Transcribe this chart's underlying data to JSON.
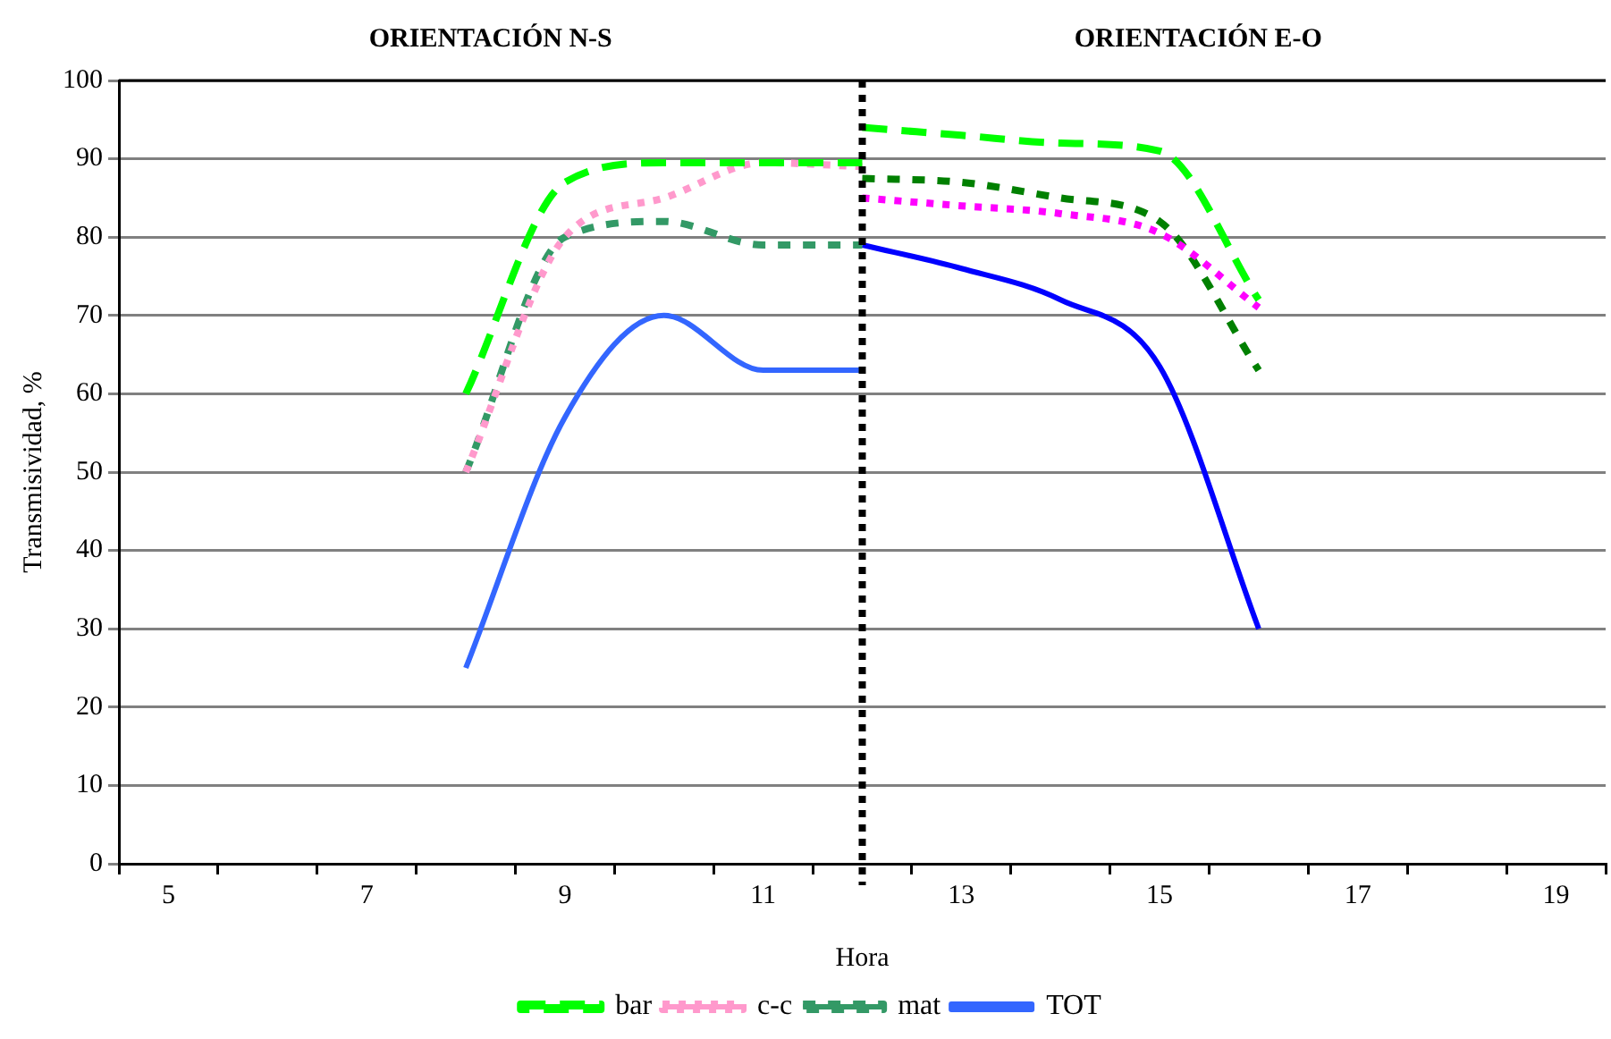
{
  "chart_data": {
    "type": "line",
    "xlabel": "Hora",
    "ylabel": "Transmisividad, %",
    "annotations": [
      "ORIENTACIÓN N-S",
      "ORIENTACIÓN E-O"
    ],
    "xlim": [
      4.5,
      19.5
    ],
    "xticks": [
      {
        "value": 4.5,
        "label": null
      },
      5,
      {
        "value": 5.5,
        "label": null
      },
      {
        "value": 6.5,
        "label": null
      },
      7,
      {
        "value": 7.5,
        "label": null
      },
      {
        "value": 8.5,
        "label": null
      },
      9,
      {
        "value": 9.5,
        "label": null
      },
      {
        "value": 10.5,
        "label": null
      },
      11,
      {
        "value": 11.5,
        "label": null
      },
      {
        "value": 12.5,
        "label": null
      },
      13,
      {
        "value": 13.5,
        "label": null
      },
      {
        "value": 14.5,
        "label": null
      },
      15,
      {
        "value": 15.5,
        "label": null
      },
      {
        "value": 16.5,
        "label": null
      },
      17,
      {
        "value": 17.5,
        "label": null
      },
      {
        "value": 18.5,
        "label": null
      },
      19,
      {
        "value": 19.5,
        "label": null
      }
    ],
    "ylim": [
      0,
      100
    ],
    "yticks": [
      0,
      10,
      20,
      30,
      40,
      50,
      60,
      70,
      80,
      90,
      100
    ],
    "grid": "y",
    "legend": "bottom",
    "marker": "none",
    "ref_lines": [
      {
        "axis": "x",
        "value": 12,
        "color": "#000000",
        "line_style": "dotted"
      }
    ],
    "series": [
      {
        "name": "bar",
        "color": "#00ff00",
        "line_style": "dashed",
        "x": [
          8,
          9,
          10,
          11,
          12
        ],
        "values": [
          60,
          87,
          89.5,
          89.5,
          89.5
        ]
      },
      {
        "name": "c-c",
        "color": "#ff99cc",
        "line_style": "dotted",
        "x": [
          8,
          9,
          10,
          11,
          12
        ],
        "values": [
          50,
          80,
          85,
          89.5,
          89
        ]
      },
      {
        "name": "mat",
        "color": "#339966",
        "line_style": "dashed",
        "x": [
          8,
          9,
          10,
          11,
          12
        ],
        "values": [
          50,
          80,
          82,
          79,
          79
        ]
      },
      {
        "name": "TOT",
        "color": "#3366ff",
        "line_style": "solid",
        "x": [
          8,
          9,
          10,
          11,
          12
        ],
        "values": [
          25,
          57,
          70,
          63,
          63
        ]
      },
      {
        "color": "#00ff00",
        "line_style": "dashed",
        "x": [
          12,
          13,
          14,
          15,
          16
        ],
        "values": [
          94,
          93,
          92,
          91,
          72
        ]
      },
      {
        "color": "#ff00ff",
        "line_style": "dotted",
        "x": [
          12,
          13,
          14,
          15,
          16
        ],
        "values": [
          85,
          84,
          83,
          80.5,
          71
        ]
      },
      {
        "color": "#008000",
        "line_style": "dashed",
        "x": [
          12,
          13,
          14,
          15,
          16
        ],
        "values": [
          87.5,
          87,
          85,
          82,
          63
        ]
      },
      {
        "color": "#0000ff",
        "line_style": "solid",
        "x": [
          12,
          13,
          14,
          15,
          16
        ],
        "values": [
          79,
          76,
          72,
          63.5,
          30
        ]
      }
    ]
  }
}
